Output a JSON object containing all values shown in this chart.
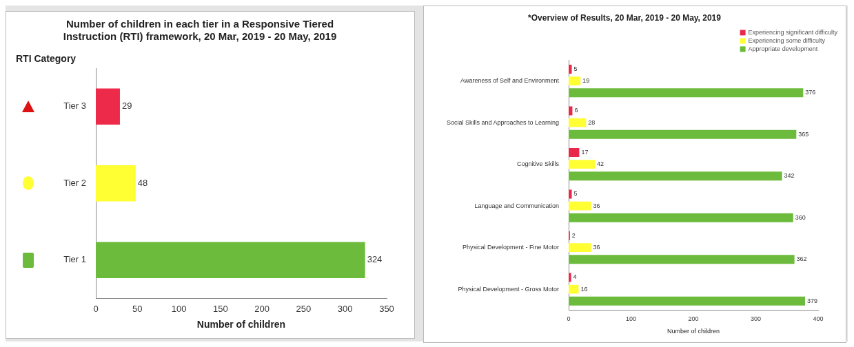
{
  "chart_data": [
    {
      "type": "bar",
      "orientation": "horizontal",
      "title": "Number of children in each tier in a Responsive Tiered Instruction (RTI) framework, 20 Mar, 2019 - 20 May, 2019",
      "ylabel": "RTI Category",
      "xlabel": "Number of children",
      "categories": [
        "Tier 3",
        "Tier 2",
        "Tier 1"
      ],
      "values": [
        29,
        48,
        324
      ],
      "colors": [
        "#ee2a4a",
        "#ffff33",
        "#6cbb3c"
      ],
      "xlim": [
        0,
        350
      ],
      "xticks": [
        0,
        50,
        100,
        150,
        200,
        250,
        300,
        350
      ],
      "grid": false,
      "data_labels": true
    },
    {
      "type": "bar",
      "orientation": "horizontal",
      "title": "*Overview of Results, 20 Mar, 2019 - 20 May, 2019",
      "xlabel": "Number of children",
      "categories": [
        "Awareness of Self and Environment",
        "Social Skills and Approaches to Learning",
        "Cognitive Skills",
        "Language and Communication",
        "Physical Development - Fine Motor",
        "Physical Development - Gross Motor"
      ],
      "series": [
        {
          "name": "Experiencing significant difficulty",
          "color": "#e8294a",
          "values": [
            5,
            6,
            17,
            5,
            2,
            4
          ]
        },
        {
          "name": "Experiencing some difficulty",
          "color": "#ffff33",
          "values": [
            19,
            28,
            42,
            36,
            36,
            16
          ]
        },
        {
          "name": "Appropriate development",
          "color": "#6cbb3c",
          "values": [
            376,
            365,
            342,
            360,
            362,
            379
          ]
        }
      ],
      "xlim": [
        0,
        400
      ],
      "xticks": [
        0,
        100,
        200,
        300,
        400
      ],
      "grid": false,
      "legend": "top right",
      "data_labels": true
    }
  ]
}
